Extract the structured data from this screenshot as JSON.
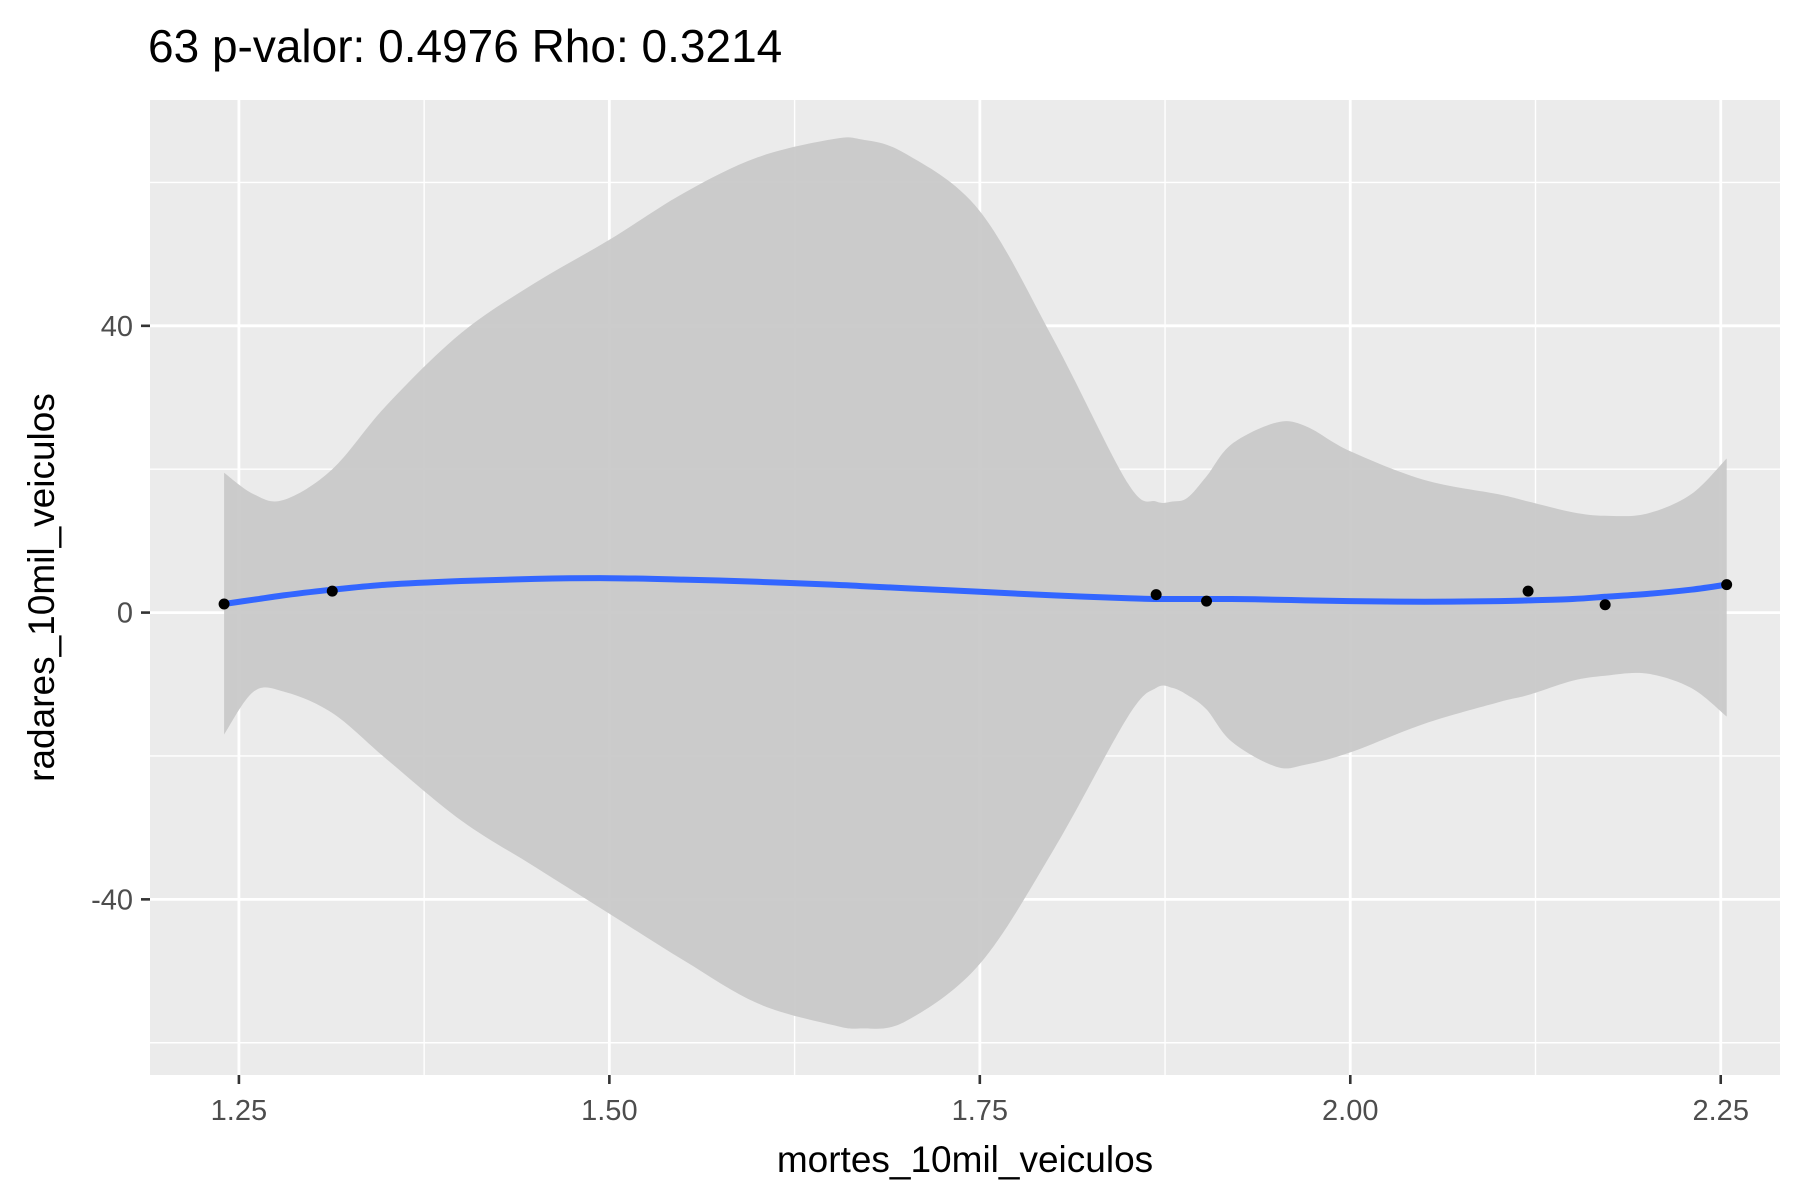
{
  "chart_data": {
    "type": "scatter",
    "title": "63 p-valor: 0.4976 Rho: 0.3214",
    "xlabel": "mortes_10mil_veiculos",
    "ylabel": "radares_10mil_veiculos",
    "xlim": [
      1.19,
      2.29
    ],
    "ylim": [
      -64.5,
      71.5
    ],
    "x_ticks": [
      1.25,
      1.5,
      1.75,
      2.0,
      2.25
    ],
    "x_tick_labels": [
      "1.25",
      "1.50",
      "1.75",
      "2.00",
      "2.25"
    ],
    "x_minor_ticks": [
      1.375,
      1.625,
      1.875,
      2.125
    ],
    "y_ticks": [
      -40,
      0,
      40
    ],
    "y_tick_labels": [
      "-40",
      "0",
      "40"
    ],
    "y_minor_ticks": [
      -60,
      -20,
      20,
      60
    ],
    "grid": true,
    "colors": {
      "panel": "#ebebeb",
      "grid": "#ffffff",
      "points": "#000000",
      "smooth_line": "#3366ff",
      "confidence_band": "#c8c8c8"
    },
    "points": [
      {
        "x": 1.24,
        "y": 1.2
      },
      {
        "x": 1.313,
        "y": 3.0
      },
      {
        "x": 1.869,
        "y": 2.5
      },
      {
        "x": 1.903,
        "y": 1.6
      },
      {
        "x": 2.12,
        "y": 3.0
      },
      {
        "x": 2.172,
        "y": 1.1
      },
      {
        "x": 2.254,
        "y": 3.9
      }
    ],
    "smooth": {
      "x": [
        1.24,
        1.26,
        1.28,
        1.313,
        1.35,
        1.4,
        1.45,
        1.5,
        1.55,
        1.6,
        1.65,
        1.67,
        1.7,
        1.75,
        1.8,
        1.85,
        1.869,
        1.88,
        1.89,
        1.903,
        1.92,
        1.95,
        1.97,
        2.0,
        2.05,
        2.1,
        2.12,
        2.15,
        2.172,
        2.2,
        2.23,
        2.254
      ],
      "y": [
        1.2,
        1.8,
        2.4,
        3.2,
        3.9,
        4.4,
        4.7,
        4.8,
        4.6,
        4.3,
        3.9,
        3.7,
        3.4,
        2.9,
        2.4,
        2.0,
        1.9,
        1.9,
        1.9,
        1.9,
        1.9,
        1.8,
        1.7,
        1.6,
        1.5,
        1.6,
        1.7,
        1.9,
        2.2,
        2.6,
        3.2,
        3.9
      ],
      "upper": [
        19.5,
        16.5,
        15.7,
        20.0,
        29.0,
        39.0,
        46.0,
        52.0,
        58.5,
        63.5,
        66.0,
        66.0,
        64.0,
        56.0,
        38.0,
        18.0,
        15.5,
        15.5,
        16.0,
        19.0,
        23.5,
        26.5,
        26.0,
        22.5,
        18.5,
        16.5,
        15.5,
        14.0,
        13.5,
        13.8,
        16.5,
        21.5
      ],
      "lower": [
        -17.0,
        -11.0,
        -11.0,
        -14.0,
        -20.5,
        -29.0,
        -35.5,
        -42.0,
        -48.5,
        -54.5,
        -57.5,
        -58.0,
        -57.0,
        -49.0,
        -33.0,
        -14.5,
        -10.5,
        -10.5,
        -11.5,
        -13.5,
        -18.0,
        -21.5,
        -21.2,
        -19.5,
        -15.5,
        -12.5,
        -11.5,
        -9.5,
        -8.8,
        -8.5,
        -10.5,
        -14.5
      ]
    }
  }
}
